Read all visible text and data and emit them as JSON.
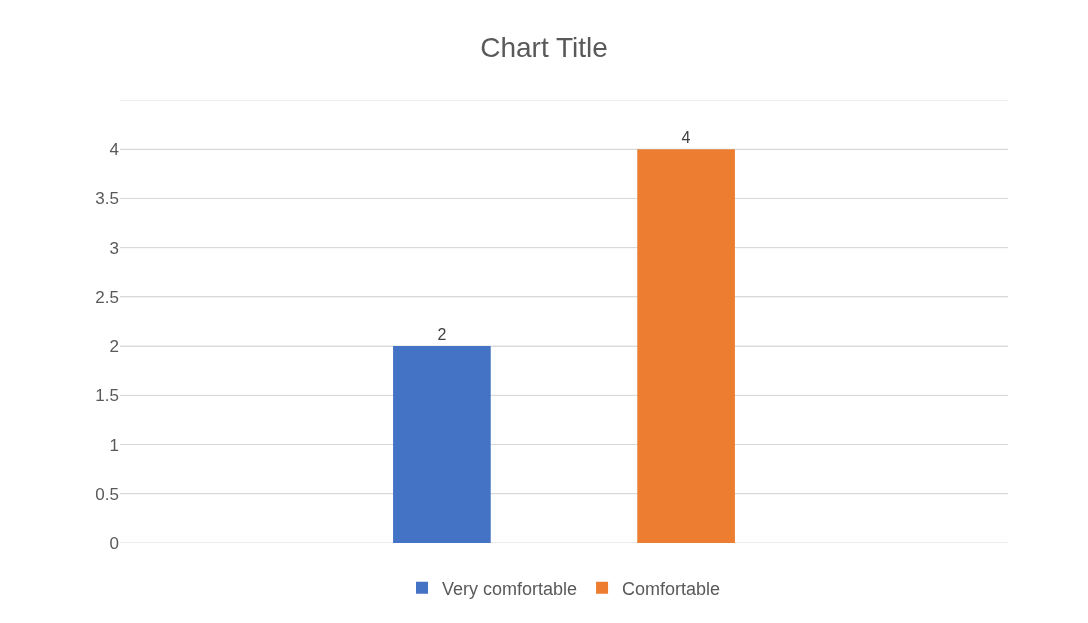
{
  "chart_data": {
    "type": "bar",
    "title": "Chart Title",
    "categories": [
      null
    ],
    "series": [
      {
        "name": "Very comfortable",
        "color": "#4472c4",
        "values": [
          2
        ]
      },
      {
        "name": "Comfortable",
        "color": "#ed7d31",
        "values": [
          4
        ]
      }
    ],
    "ylim": [
      0,
      4.5
    ],
    "yticks": [
      0,
      0.5,
      1,
      1.5,
      2,
      2.5,
      3,
      3.5,
      4,
      {
        "value": 4.5,
        "label": null
      }
    ],
    "grid": "y",
    "legend": "bottom",
    "data_labels": true,
    "tick_labels": "y"
  }
}
